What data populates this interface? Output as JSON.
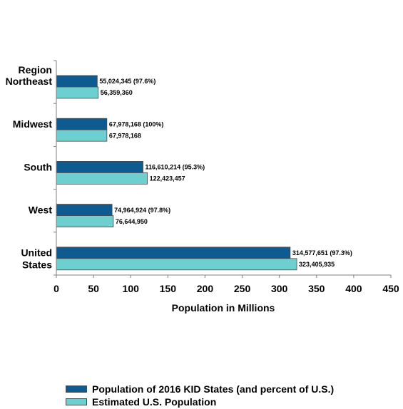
{
  "chart_data": {
    "type": "bar",
    "orientation": "horizontal",
    "title": "",
    "category_axis_header": "Region",
    "xlabel": "Population in Millions",
    "ylabel": "",
    "xlim": [
      0,
      450
    ],
    "x_ticks": [
      0,
      50,
      100,
      150,
      200,
      250,
      300,
      350,
      400,
      450
    ],
    "grid": false,
    "legend_position": "bottom",
    "categories": [
      "Northeast",
      "Midwest",
      "South",
      "West",
      "United\nStates"
    ],
    "series": [
      {
        "name": "Population of 2016 KID States (and percent of U.S.)",
        "color": "#0e5b91",
        "values": [
          55.024345,
          67.978168,
          116.610214,
          74.964924,
          314.577651
        ],
        "labels": [
          "55,024,345 (97.6%)",
          "67,978,168 (100%)",
          "116,610,214 (95.3%)",
          "74,964,924 (97.8%)",
          "314,577,651 (97.3%)"
        ]
      },
      {
        "name": "Estimated U.S. Population",
        "color": "#6dcfcf",
        "values": [
          56.35936,
          67.978168,
          122.423457,
          76.64495,
          323.405935
        ],
        "labels": [
          "56,359,360",
          "67,978,168",
          "122,423,457",
          "76,644,950",
          "323,405,935"
        ]
      }
    ]
  }
}
